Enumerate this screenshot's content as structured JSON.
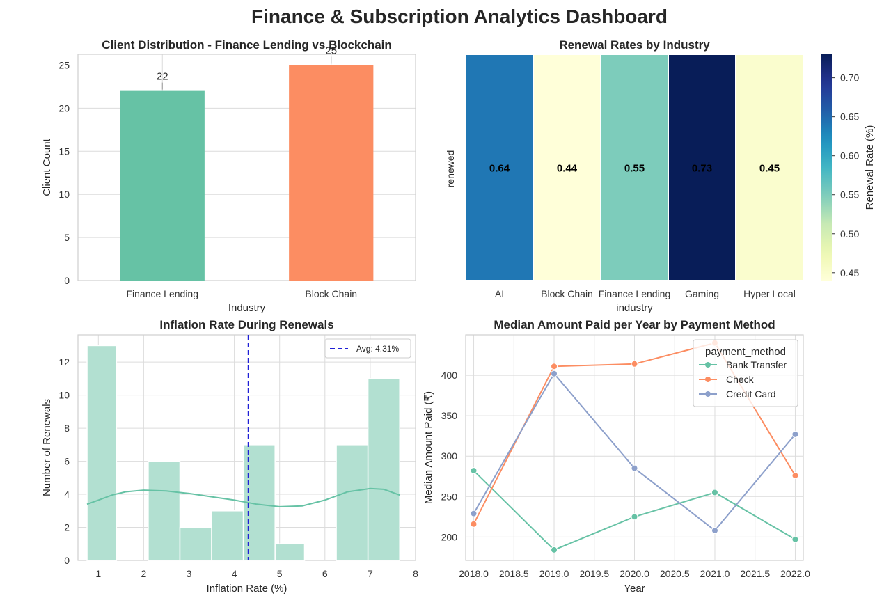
{
  "dashboard": {
    "title": "Finance & Subscription Analytics Dashboard"
  },
  "chart_data": [
    {
      "type": "bar",
      "title": "Client Distribution - Finance Lending vs Blockchain",
      "xlabel": "Industry",
      "ylabel": "Client Count",
      "categories": [
        "Finance Lending",
        "Block Chain"
      ],
      "values": [
        22,
        25
      ],
      "data_labels": [
        "22",
        "25"
      ],
      "colors": [
        "#66c2a5",
        "#fc8d62"
      ],
      "ylim": [
        0,
        26.25
      ],
      "yticks": [
        0,
        5,
        10,
        15,
        20,
        25
      ],
      "grid": true
    },
    {
      "type": "heatmap",
      "title": "Renewal Rates by Industry",
      "xlabel": "industry",
      "ylabel": "renewed",
      "categories": [
        "AI",
        "Block Chain",
        "Finance Lending",
        "Gaming",
        "Hyper Local"
      ],
      "values": [
        0.64,
        0.44,
        0.55,
        0.73,
        0.45
      ],
      "value_labels": [
        "0.64",
        "0.44",
        "0.55",
        "0.73",
        "0.45"
      ],
      "colorbar": {
        "label": "Renewal Rate (%)",
        "range": [
          0.44,
          0.73
        ],
        "ticks": [
          0.45,
          0.5,
          0.55,
          0.6,
          0.65,
          0.7
        ],
        "tick_labels": [
          "0.45",
          "0.50",
          "0.55",
          "0.60",
          "0.65",
          "0.70"
        ],
        "colormap": "YlGnBu"
      }
    },
    {
      "type": "bar",
      "subtype": "histogram",
      "title": "Inflation Rate During Renewals",
      "xlabel": "Inflation Rate (%)",
      "ylabel": "Number of Renewals",
      "bins": [
        {
          "x0": 0.75,
          "x1": 1.4,
          "count": 13
        },
        {
          "x0": 1.4,
          "x1": 2.1,
          "count": 0
        },
        {
          "x0": 2.1,
          "x1": 2.8,
          "count": 6
        },
        {
          "x0": 2.8,
          "x1": 3.5,
          "count": 2
        },
        {
          "x0": 3.5,
          "x1": 4.2,
          "count": 3
        },
        {
          "x0": 4.2,
          "x1": 4.9,
          "count": 7
        },
        {
          "x0": 4.9,
          "x1": 5.55,
          "count": 1
        },
        {
          "x0": 5.55,
          "x1": 6.25,
          "count": 0
        },
        {
          "x0": 6.25,
          "x1": 6.95,
          "count": 7
        },
        {
          "x0": 6.95,
          "x1": 7.65,
          "count": 11
        }
      ],
      "kde": {
        "x": [
          0.75,
          1.0,
          1.3,
          1.6,
          2.0,
          2.5,
          3.0,
          3.5,
          4.0,
          4.5,
          5.0,
          5.5,
          6.0,
          6.5,
          7.0,
          7.3,
          7.65
        ],
        "y": [
          3.4,
          3.65,
          3.95,
          4.15,
          4.25,
          4.2,
          4.05,
          3.85,
          3.65,
          3.4,
          3.25,
          3.3,
          3.65,
          4.15,
          4.35,
          4.3,
          3.95
        ]
      },
      "avg_line": {
        "value": 4.31,
        "label": "Avg: 4.31%"
      },
      "bar_color": "#b2e0d1",
      "kde_color": "#66c2a5",
      "avg_color": "#1f1fd6",
      "xlim": [
        0.55,
        8.0
      ],
      "ylim": [
        0,
        13.65
      ],
      "xticks": [
        1,
        2,
        3,
        4,
        5,
        6,
        7,
        8
      ],
      "yticks": [
        0,
        2,
        4,
        6,
        8,
        10,
        12
      ],
      "legend_position": "upper-right",
      "grid": true
    },
    {
      "type": "line",
      "title": "Median Amount Paid per Year by Payment Method",
      "xlabel": "Year",
      "ylabel": "Median Amount Paid (₹)",
      "x": [
        2018,
        2019,
        2020,
        2021,
        2022
      ],
      "series": [
        {
          "name": "Bank Transfer",
          "values": [
            282,
            184,
            225,
            255,
            197
          ],
          "color": "#66c2a5"
        },
        {
          "name": "Check",
          "values": [
            216,
            411,
            414,
            440,
            276
          ],
          "color": "#fc8d62"
        },
        {
          "name": "Credit Card",
          "values": [
            229,
            402,
            285,
            208,
            327
          ],
          "color": "#8da0cb"
        }
      ],
      "legend_title": "payment_method",
      "legend_position": "upper-right",
      "xlim": [
        2017.9,
        2022.1
      ],
      "ylim": [
        171,
        450
      ],
      "xticks": [
        2018.0,
        2018.5,
        2019.0,
        2019.5,
        2020.0,
        2020.5,
        2021.0,
        2021.5,
        2022.0
      ],
      "xtick_labels": [
        "2018.0",
        "2018.5",
        "2019.0",
        "2019.5",
        "2020.0",
        "2020.5",
        "2021.0",
        "2021.5",
        "2022.0"
      ],
      "yticks": [
        200,
        250,
        300,
        350,
        400
      ],
      "grid": true
    }
  ]
}
